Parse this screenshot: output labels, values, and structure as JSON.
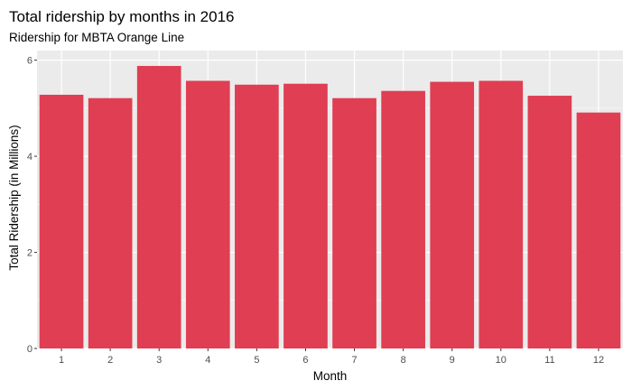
{
  "chart_data": {
    "type": "bar",
    "title": "Total ridership by months in 2016",
    "subtitle": "Ridership for MBTA Orange Line",
    "xlabel": "Month",
    "ylabel": "Total Ridership (in Millions)",
    "categories": [
      "1",
      "2",
      "3",
      "4",
      "5",
      "6",
      "7",
      "8",
      "9",
      "10",
      "11",
      "12"
    ],
    "values": [
      5.28,
      5.21,
      5.88,
      5.57,
      5.49,
      5.51,
      5.21,
      5.36,
      5.55,
      5.57,
      5.26,
      4.91
    ],
    "ylim": [
      0,
      6.2
    ],
    "yticks": [
      "0",
      "2",
      "4",
      "6"
    ],
    "bar_color": "#E03E52",
    "panel_background": "#EBEBEB",
    "grid_color": "#FFFFFF",
    "grid": true,
    "legend": "none"
  }
}
